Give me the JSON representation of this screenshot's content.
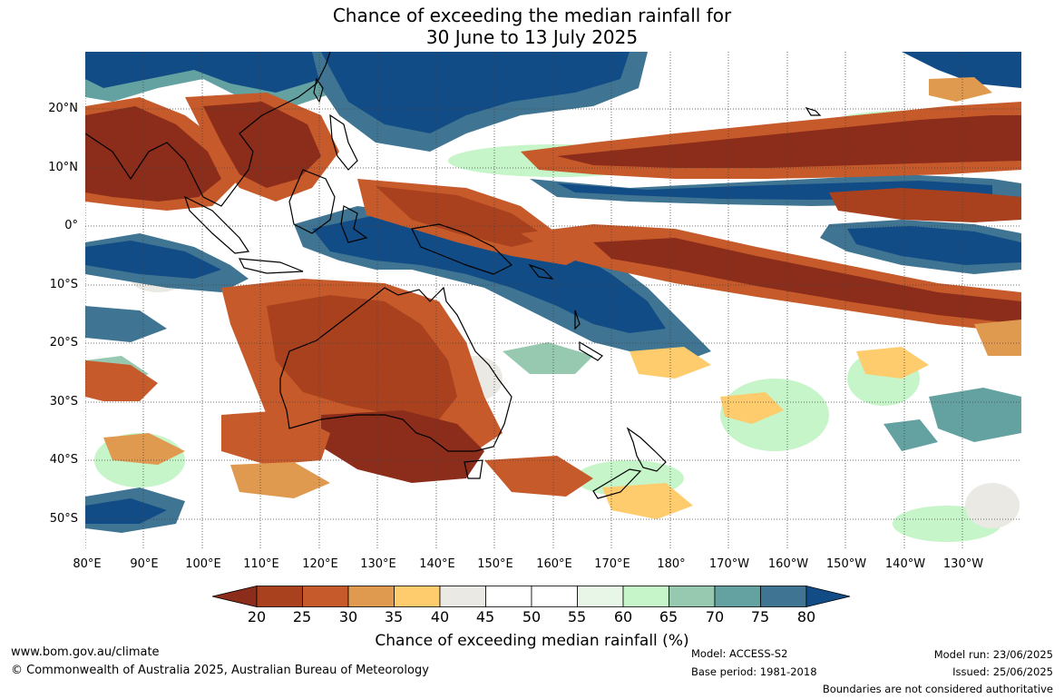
{
  "title": {
    "line1": "Chance of exceeding the median rainfall for",
    "line2": "30 June to 13 July 2025"
  },
  "axes": {
    "lat_labels": [
      "20°N",
      "10°N",
      "0°",
      "10°S",
      "20°S",
      "30°S",
      "40°S",
      "50°S"
    ],
    "lon_labels": [
      "80°E",
      "90°E",
      "100°E",
      "110°E",
      "120°E",
      "130°E",
      "140°E",
      "150°E",
      "160°E",
      "170°E",
      "180°",
      "170°W",
      "160°W",
      "150°W",
      "140°W",
      "130°W"
    ]
  },
  "colorbar": {
    "title": "Chance of exceeding median rainfall (%)",
    "ticks": [
      "20",
      "25",
      "30",
      "35",
      "40",
      "45",
      "50",
      "55",
      "60",
      "65",
      "70",
      "75",
      "80"
    ],
    "colors": [
      "#8b2d1a",
      "#a9411f",
      "#c65a2a",
      "#e09a50",
      "#fecc6c",
      "#ebe9e3",
      "#ffffff",
      "#ffffff",
      "#e8f6e8",
      "#c5f5c8",
      "#97c9b0",
      "#63a2a0",
      "#3f7592",
      "#124c86"
    ]
  },
  "footer": {
    "website": "www.bom.gov.au/climate",
    "copyright": "© Commonwealth of Australia 2025, Australian Bureau of Meteorology",
    "model": "Model: ACCESS-S2",
    "base_period": "Base period: 1981-2018",
    "model_run": "Model run: 23/06/2025",
    "issued": "Issued: 25/06/2025",
    "disclaimer": "Boundaries are not considered authoritative"
  }
}
